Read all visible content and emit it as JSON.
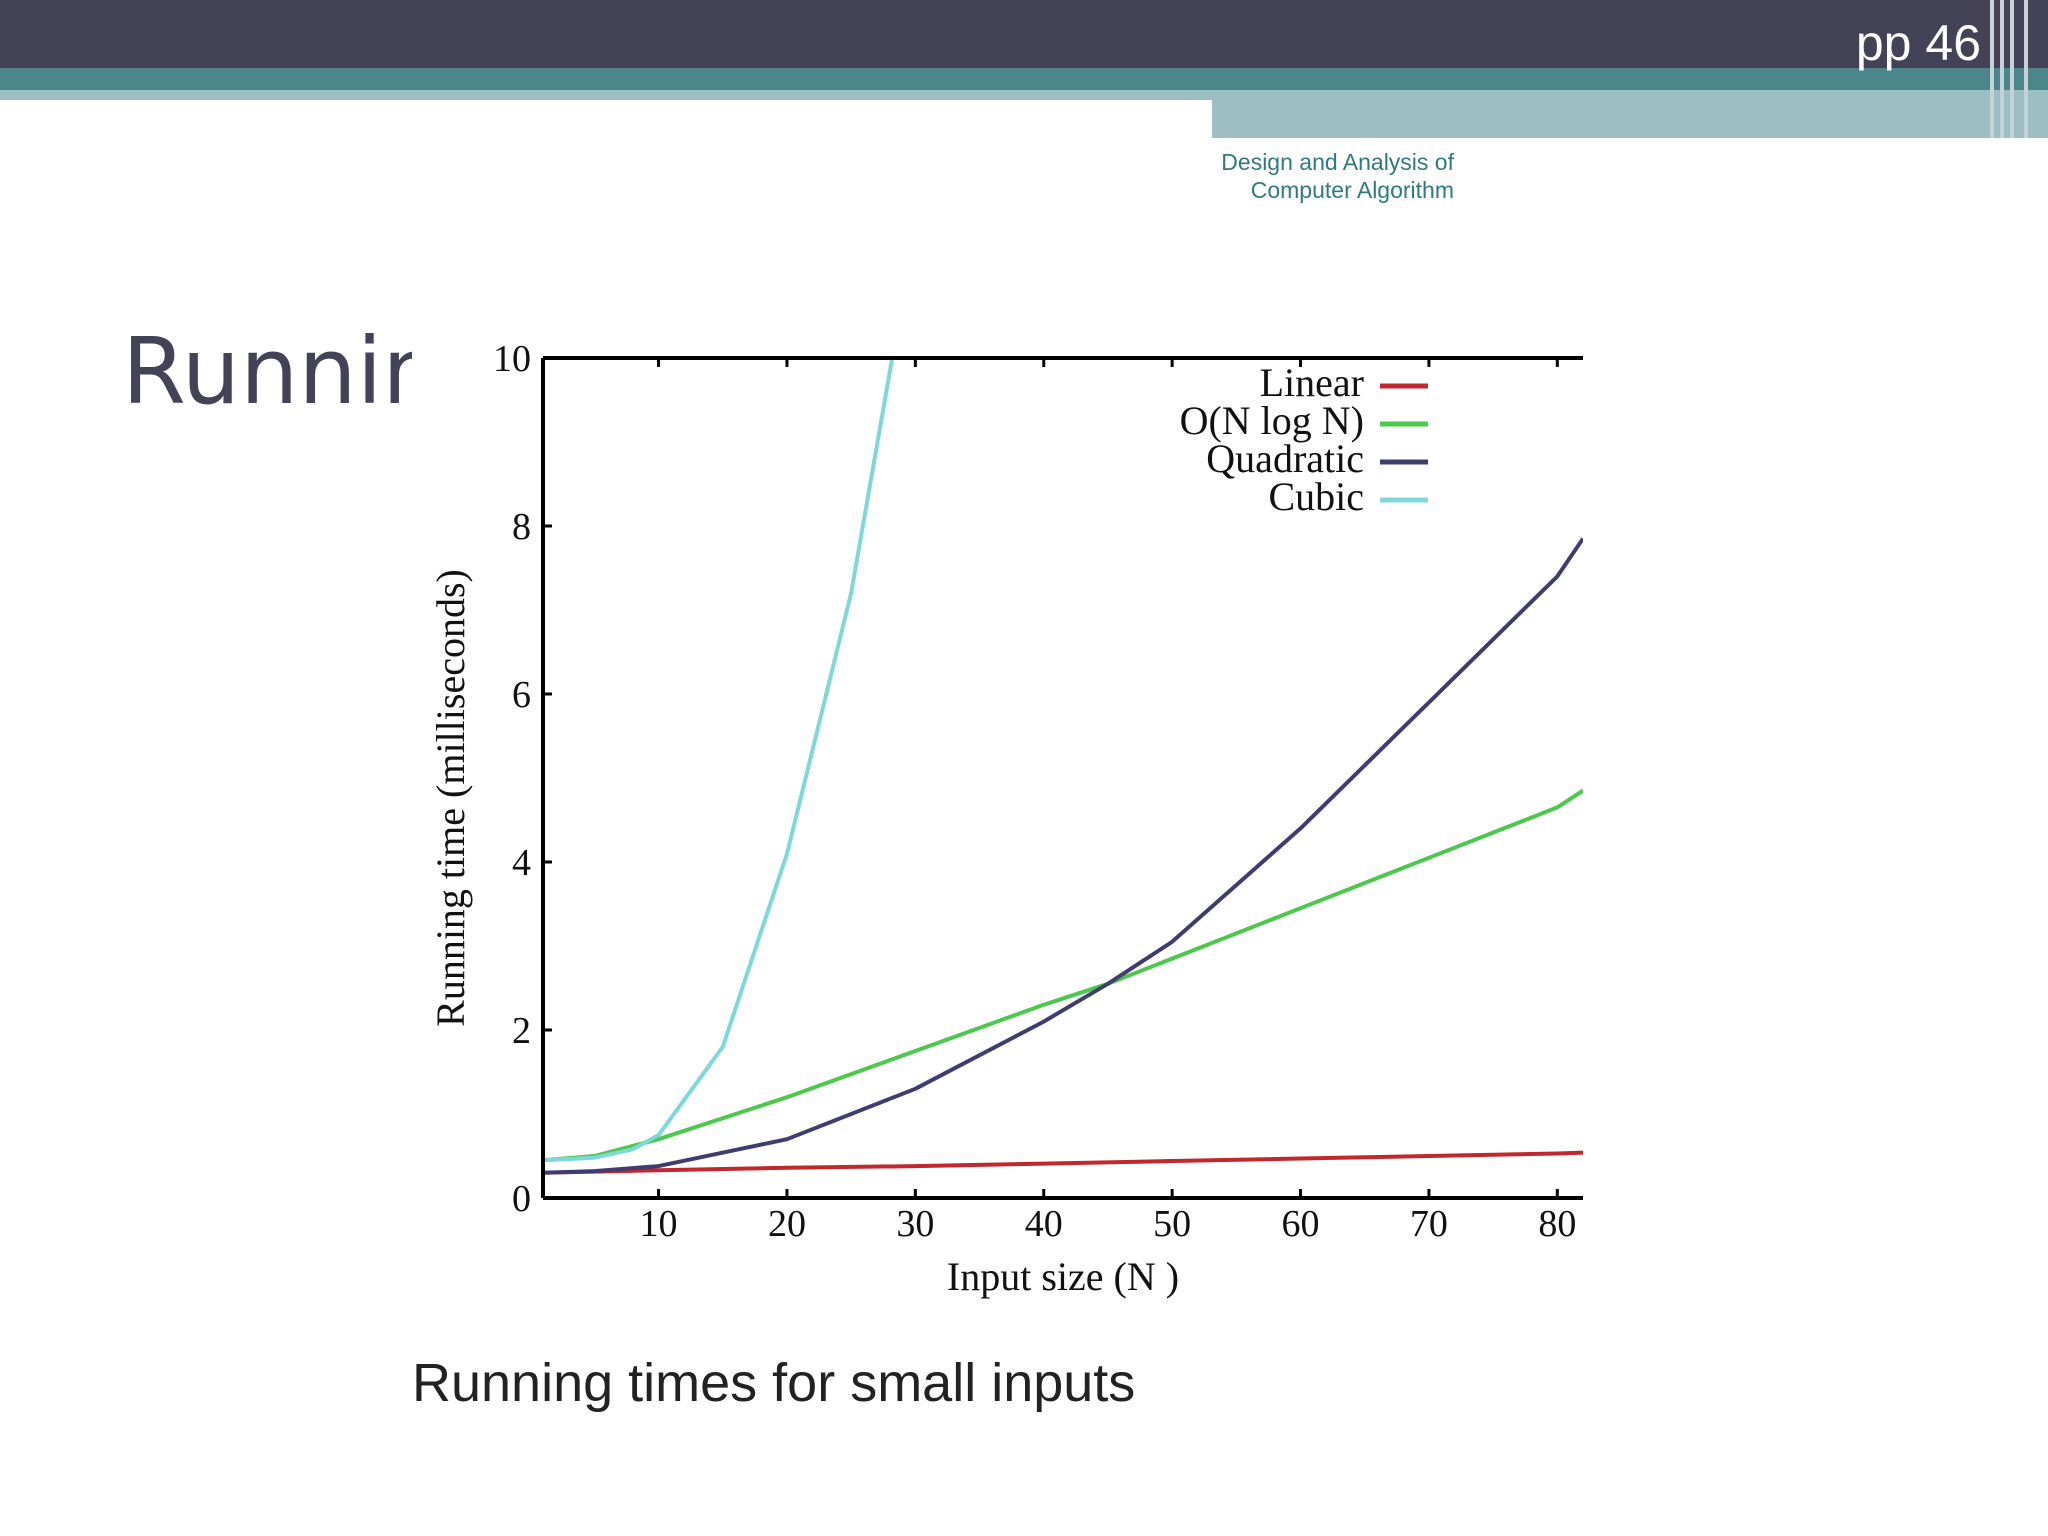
{
  "header": {
    "page_number": "pp 46",
    "course_title": "Design and Analysis of Computer Algorithm"
  },
  "slide": {
    "title": "Running"
  },
  "caption": "Running times for small inputs",
  "chart_data": {
    "type": "line",
    "xlabel": "Input size (N )",
    "ylabel": "Running time (milliseconds)",
    "xlim": [
      1,
      82
    ],
    "ylim": [
      0,
      10
    ],
    "x_ticks": [
      10,
      20,
      30,
      40,
      50,
      60,
      70,
      80
    ],
    "y_ticks": [
      0,
      2,
      4,
      6,
      8,
      10
    ],
    "legend_position": "top-right",
    "grid": false,
    "series": [
      {
        "name": "Linear",
        "color": "#c0282d",
        "x": [
          1,
          10,
          20,
          30,
          40,
          50,
          60,
          70,
          80,
          82
        ],
        "y": [
          0.3,
          0.33,
          0.36,
          0.38,
          0.41,
          0.44,
          0.47,
          0.5,
          0.53,
          0.54
        ]
      },
      {
        "name": "O(N log N)",
        "color": "#4cc84c",
        "x": [
          1,
          5,
          10,
          20,
          30,
          40,
          45,
          50,
          60,
          70,
          80,
          82
        ],
        "y": [
          0.45,
          0.5,
          0.7,
          1.2,
          1.75,
          2.3,
          2.55,
          2.85,
          3.45,
          4.05,
          4.65,
          4.85
        ]
      },
      {
        "name": "Quadratic",
        "color": "#3f3d6e",
        "x": [
          1,
          5,
          10,
          20,
          30,
          40,
          45,
          50,
          60,
          70,
          80,
          82
        ],
        "y": [
          0.3,
          0.32,
          0.38,
          0.7,
          1.3,
          2.1,
          2.55,
          3.05,
          4.4,
          5.9,
          7.4,
          7.85
        ]
      },
      {
        "name": "Cubic",
        "color": "#7fd8d8",
        "x": [
          1,
          5,
          8,
          10,
          15,
          20,
          25,
          28.2
        ],
        "y": [
          0.45,
          0.48,
          0.58,
          0.75,
          1.8,
          4.1,
          7.2,
          10
        ]
      }
    ]
  }
}
